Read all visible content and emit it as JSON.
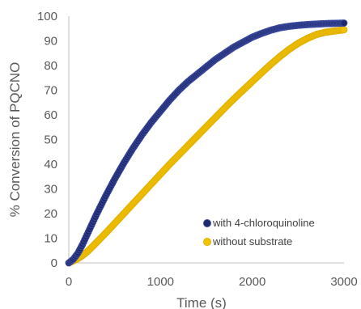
{
  "chart_data": {
    "type": "scatter",
    "title": "",
    "xlabel": "Time (s)",
    "ylabel": "% Conversion of PQCNO",
    "xlim": [
      0,
      3000
    ],
    "ylim": [
      0,
      100
    ],
    "xticks": [
      0,
      1000,
      2000,
      3000
    ],
    "yticks": [
      0,
      10,
      20,
      30,
      40,
      50,
      60,
      70,
      80,
      90,
      100
    ],
    "grid": false,
    "legend_position": "bottom-right",
    "series": [
      {
        "name": "with 4-chloroquinoline",
        "color": "#1f2a6e",
        "edge_color": "#3b4a9e",
        "x": [
          0,
          50,
          100,
          150,
          200,
          250,
          300,
          400,
          500,
          600,
          700,
          800,
          900,
          1000,
          1100,
          1200,
          1300,
          1400,
          1500,
          1600,
          1700,
          1800,
          1900,
          2000,
          2100,
          2200,
          2300,
          2400,
          2500,
          2600,
          2700,
          2800,
          2900,
          3000
        ],
        "values": [
          0,
          1.5,
          4,
          7.5,
          11.5,
          15.5,
          19.5,
          27,
          34,
          40.5,
          46.5,
          52,
          57,
          61.5,
          66,
          70,
          73.5,
          76.5,
          79.5,
          82.5,
          85,
          87.5,
          89.5,
          91.5,
          93,
          94.3,
          95.3,
          95.9,
          96.3,
          96.6,
          96.8,
          97,
          97.1,
          97.2
        ]
      },
      {
        "name": "without substrate",
        "color": "#f2c200",
        "edge_color": "#e0b000",
        "x": [
          0,
          50,
          100,
          150,
          200,
          250,
          300,
          400,
          500,
          600,
          700,
          800,
          900,
          1000,
          1100,
          1200,
          1300,
          1400,
          1500,
          1600,
          1700,
          1800,
          1900,
          2000,
          2100,
          2200,
          2300,
          2400,
          2500,
          2600,
          2700,
          2800,
          2900,
          3000
        ],
        "values": [
          0,
          0.8,
          1.8,
          3,
          4.5,
          6.3,
          8.2,
          12,
          16,
          20,
          24,
          28,
          32,
          36,
          40,
          43.8,
          47.6,
          51.4,
          55.2,
          59,
          62.8,
          66.5,
          70,
          73.5,
          77,
          80.4,
          83.6,
          86.5,
          89,
          91,
          92.6,
          93.5,
          94,
          94.5
        ]
      }
    ]
  }
}
